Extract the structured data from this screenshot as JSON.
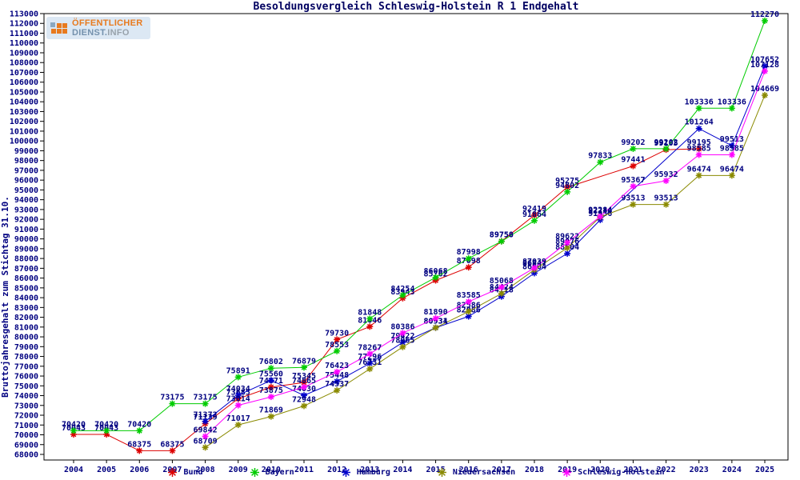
{
  "title": "Besoldungsvergleich Schleswig-Holstein R 1 Endgehalt",
  "logo": {
    "line1": "ÖFFENTLICHER",
    "line2_a": "DIENST.",
    "line2_b": "INFO",
    "orange": "#e87a1e",
    "slate": "#8aa7c0",
    "background": "#dce8f4"
  },
  "chart_data": {
    "type": "line",
    "title": "Besoldungsvergleich Schleswig-Holstein R 1 Endgehalt",
    "xlabel": "",
    "ylabel": "Bruttojahresgehalt zum Stichtag 31.10.",
    "x": [
      2004,
      2005,
      2006,
      2007,
      2008,
      2009,
      2010,
      2011,
      2012,
      2013,
      2014,
      2015,
      2016,
      2017,
      2018,
      2019,
      2020,
      2021,
      2022,
      2023,
      2024,
      2025
    ],
    "ylim": [
      68000,
      113000
    ],
    "ytick_step": 1000,
    "grid": false,
    "legend_position": "bottom",
    "point_labels": true,
    "label_color": "#000080",
    "series": [
      {
        "name": "Bund",
        "color": "#dd0000",
        "values": [
          70043,
          70043,
          68375,
          68375,
          71139,
          73685,
          74871,
          75345,
          79730,
          81046,
          83943,
          85762,
          87098,
          89758,
          92419,
          95275,
          null,
          97441,
          99105,
          99195,
          null,
          null
        ]
      },
      {
        "name": "Bayern",
        "color": "#00cc00",
        "values": [
          70420,
          70420,
          70420,
          73175,
          73175,
          75891,
          76802,
          76879,
          78553,
          81848,
          84254,
          86068,
          87998,
          89750,
          91864,
          94802,
          97833,
          99202,
          99202,
          103336,
          103336,
          112270
        ]
      },
      {
        "name": "Hamburg",
        "color": "#0000cc",
        "values": [
          null,
          null,
          null,
          null,
          71372,
          74034,
          75560,
          74030,
          75448,
          77296,
          79422,
          80931,
          82086,
          84118,
          86504,
          88504,
          91936,
          null,
          null,
          101264,
          99513,
          107652
        ]
      },
      {
        "name": "Niedersachsen",
        "color": "#8a8a00",
        "values": [
          null,
          null,
          null,
          null,
          68709,
          71017,
          71869,
          72948,
          74537,
          76731,
          78965,
          80934,
          82586,
          84424,
          86847,
          89076,
          92234,
          93513,
          93513,
          96474,
          96474,
          104669
        ]
      },
      {
        "name": "Schleswig-Holstein",
        "color": "#ff00ff",
        "values": [
          null,
          null,
          null,
          null,
          69842,
          73014,
          73875,
          74865,
          76423,
          78267,
          80386,
          81890,
          83585,
          85068,
          87039,
          89622,
          92284,
          95367,
          95932,
          98585,
          98585,
          107128
        ]
      }
    ]
  }
}
